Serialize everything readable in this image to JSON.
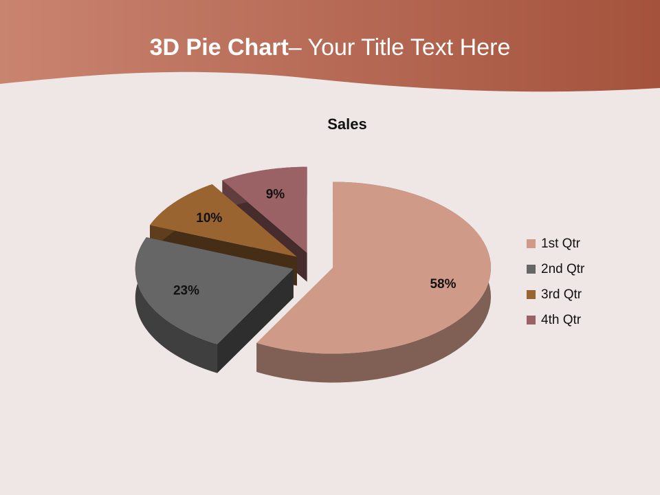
{
  "slide": {
    "title_bold": "3D Pie Chart",
    "title_rest": "– Your Title Text Here",
    "header_colors": [
      "#c98470",
      "#a4523c"
    ],
    "background_color": "#efe7e5"
  },
  "chart_data": {
    "type": "pie",
    "variant": "3d-exploded",
    "title": "Sales",
    "categories": [
      "1st Qtr",
      "2nd Qtr",
      "3rd Qtr",
      "4th Qtr"
    ],
    "values": [
      58,
      23,
      10,
      9
    ],
    "data_labels": [
      "58%",
      "23%",
      "10%",
      "9%"
    ],
    "colors": [
      "#cf9a88",
      "#666666",
      "#9a6431",
      "#9b6265"
    ],
    "legend_position": "right"
  }
}
